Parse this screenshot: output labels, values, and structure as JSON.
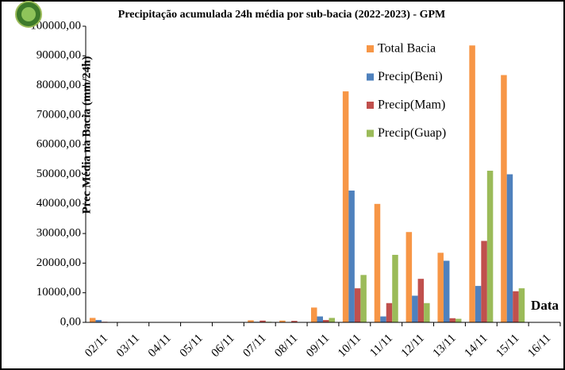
{
  "chart_data": {
    "type": "bar",
    "title": "Precipitação acumulada 24h média por sub-bacia (2022-2023) - GPM",
    "y_label": "Prec  Média na Bacia (mm/24h)",
    "x_label": "Data",
    "categories": [
      "02/11",
      "03/11",
      "04/11",
      "05/11",
      "06/11",
      "07/11",
      "08/11",
      "09/11",
      "10/11",
      "11/11",
      "12/11",
      "13/11",
      "14/11",
      "15/11",
      "16/11"
    ],
    "series": [
      {
        "name": "Total Bacia",
        "color": "#f79646",
        "values": [
          1500,
          0,
          0,
          0,
          0,
          700,
          600,
          5000,
          78000,
          40000,
          30500,
          23500,
          93500,
          83500,
          0
        ]
      },
      {
        "name": "Precip(Beni)",
        "color": "#4f81bd",
        "values": [
          800,
          0,
          0,
          0,
          0,
          200,
          100,
          2000,
          44500,
          2000,
          9000,
          20800,
          12300,
          50000,
          0
        ]
      },
      {
        "name": "Precip(Mam)",
        "color": "#c0504d",
        "values": [
          200,
          0,
          0,
          0,
          0,
          600,
          500,
          800,
          11500,
          6500,
          14700,
          1400,
          27500,
          10500,
          0
        ]
      },
      {
        "name": "Precip(Guap)",
        "color": "#9bbb59",
        "values": [
          100,
          0,
          0,
          0,
          0,
          200,
          100,
          1500,
          16000,
          22800,
          6500,
          1200,
          51200,
          11500,
          0
        ]
      }
    ],
    "ylim": [
      0,
      100000
    ],
    "yticks": [
      {
        "value": 0,
        "label": "0,00"
      },
      {
        "value": 10000,
        "label": "10000,00"
      },
      {
        "value": 20000,
        "label": "20000,00"
      },
      {
        "value": 30000,
        "label": "30000,00"
      },
      {
        "value": 40000,
        "label": "40000,00"
      },
      {
        "value": 50000,
        "label": "50000,00"
      },
      {
        "value": 60000,
        "label": "60000,00"
      },
      {
        "value": 70000,
        "label": "70000,00"
      },
      {
        "value": 80000,
        "label": "80000,00"
      },
      {
        "value": 90000,
        "label": "90000,00"
      },
      {
        "value": 100000,
        "label": "100000,00"
      }
    ],
    "grid": false,
    "legend": "top-right"
  }
}
